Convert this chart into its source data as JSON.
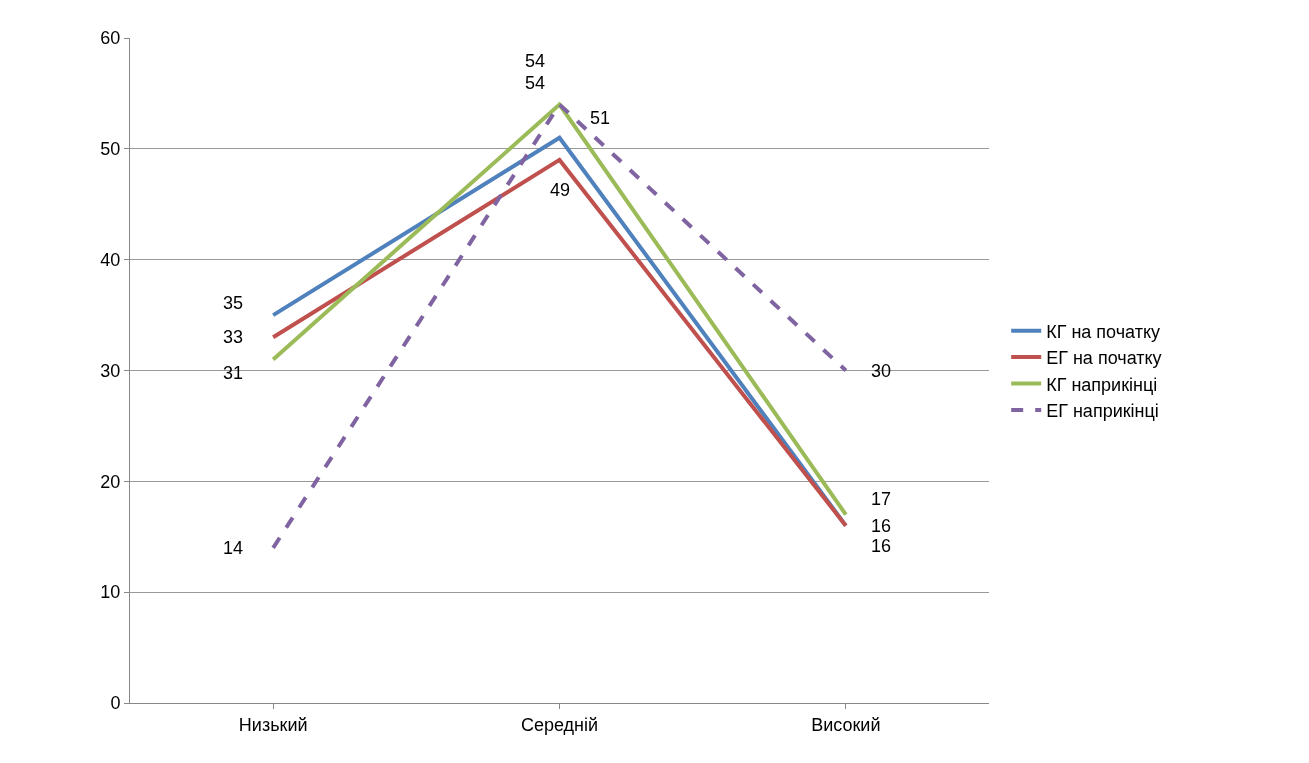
{
  "chart_data": {
    "type": "line",
    "categories": [
      "Низький",
      "Середній",
      "Високий"
    ],
    "series": [
      {
        "name": "КГ на початку",
        "color": "#4f81bd",
        "values": [
          35,
          51,
          16
        ]
      },
      {
        "name": "ЕГ на початку",
        "color": "#c0504d",
        "values": [
          33,
          49,
          16
        ]
      },
      {
        "name": "КГ наприкінці",
        "color": "#9bbb59",
        "values": [
          31,
          54,
          17
        ]
      },
      {
        "name": "ЕГ наприкінці",
        "color": "#8064a2",
        "values": [
          14,
          54,
          30
        ],
        "line_style": "dashed"
      }
    ],
    "ylim": [
      0,
      60
    ],
    "yticks": [
      0,
      10,
      20,
      30,
      40,
      50,
      60
    ],
    "grid": "y",
    "legend": "right",
    "marker": "none",
    "line_style": "solid",
    "data_labels": true
  }
}
